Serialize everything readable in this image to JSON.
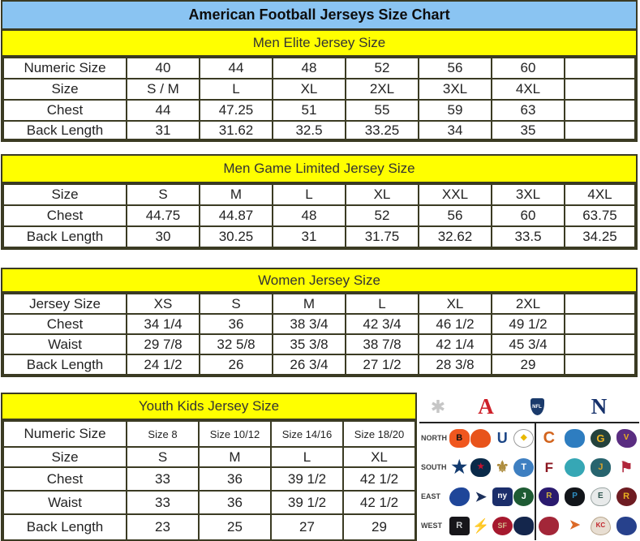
{
  "title": "American Football Jerseys Size Chart",
  "colors": {
    "title_bg": "#8AC4F2",
    "band_bg": "#FFFF00",
    "table_border": "#3B3B23",
    "text": "#232323"
  },
  "tables": [
    {
      "header": "Men Elite Jersey Size",
      "rows": [
        {
          "label": "Numeric Size",
          "values": [
            "40",
            "44",
            "48",
            "52",
            "56",
            "60",
            ""
          ]
        },
        {
          "label": "Size",
          "values": [
            "S / M",
            "L",
            "XL",
            "2XL",
            "3XL",
            "4XL",
            ""
          ]
        },
        {
          "label": "Chest",
          "values": [
            "44",
            "47.25",
            "51",
            "55",
            "59",
            "63",
            ""
          ]
        },
        {
          "label": "Back Length",
          "values": [
            "31",
            "31.62",
            "32.5",
            "33.25",
            "34",
            "35",
            ""
          ]
        }
      ]
    },
    {
      "header": "Men Game Limited Jersey Size",
      "rows": [
        {
          "label": "Size",
          "values": [
            "S",
            "M",
            "L",
            "XL",
            "XXL",
            "3XL",
            "4XL"
          ]
        },
        {
          "label": "Chest",
          "values": [
            "44.75",
            "44.87",
            "48",
            "52",
            "56",
            "60",
            "63.75"
          ]
        },
        {
          "label": "Back Length",
          "values": [
            "30",
            "30.25",
            "31",
            "31.75",
            "32.62",
            "33.5",
            "34.25"
          ]
        }
      ]
    },
    {
      "header": "Women Jersey Size",
      "rows": [
        {
          "label": "Jersey Size",
          "values": [
            "XS",
            "S",
            "M",
            "L",
            "XL",
            "2XL",
            ""
          ]
        },
        {
          "label": "Chest",
          "values": [
            "34 1/4",
            "36",
            "38 3/4",
            "42 3/4",
            "46 1/2",
            "49 1/2",
            ""
          ]
        },
        {
          "label": "Waist",
          "values": [
            "29 7/8",
            "32 5/8",
            "35 3/8",
            "38 7/8",
            "42 1/4",
            "45 3/4",
            ""
          ]
        },
        {
          "label": "Back Length",
          "values": [
            "24 1/2",
            "26",
            "26 3/4",
            "27 1/2",
            "28 3/8",
            "29",
            ""
          ]
        }
      ]
    },
    {
      "header": "Youth Kids Jersey Size",
      "rows": [
        {
          "label": "Numeric Size",
          "values": [
            "Size 8",
            "Size 10/12",
            "Size 14/16",
            "Size 18/20"
          ]
        },
        {
          "label": "Size",
          "values": [
            "S",
            "M",
            "L",
            "XL"
          ]
        },
        {
          "label": "Chest",
          "values": [
            "33",
            "36",
            "39 1/2",
            "42 1/2"
          ]
        },
        {
          "label": "Waist",
          "values": [
            "33",
            "36",
            "39 1/2",
            "42 1/2"
          ]
        },
        {
          "label": "Back Length",
          "values": [
            "23",
            "25",
            "27",
            "29"
          ]
        }
      ]
    }
  ],
  "logo_panel": {
    "header": {
      "starburst": {
        "glyph": "✱",
        "color": "#C6C6C6"
      },
      "afc": {
        "glyph": "A",
        "color": "#CE2029"
      },
      "nfl": {
        "glyph": "NFL",
        "color": "#FFFFFF",
        "bg": "#1A3A6B"
      },
      "nfc": {
        "glyph": "N",
        "color": "#16316B"
      }
    },
    "divisions": [
      {
        "label": "NORTH",
        "afc": [
          {
            "name": "cincinnati-bengals",
            "glyph": "B",
            "bg": "#F0571F",
            "fg": "#111111",
            "radius": "40%"
          },
          {
            "name": "cleveland-browns",
            "glyph": "",
            "bg": "#E8531B",
            "fg": "#ffffff",
            "radius": "50% 50% 42% 42%"
          },
          {
            "name": "indianapolis-colts",
            "glyph": "U",
            "bg": "",
            "fg": "#1B4586",
            "size": 18
          },
          {
            "name": "pittsburgh-steelers",
            "glyph": "◆",
            "bg": "#FFFFFF",
            "fg": "#E8B800",
            "radius": "50%",
            "size": 10,
            "border": "#9a9a9a"
          }
        ],
        "nfc": [
          {
            "name": "chicago-bears",
            "glyph": "C",
            "bg": "",
            "fg": "#D2631C",
            "size": 20
          },
          {
            "name": "detroit-lions",
            "glyph": "",
            "bg": "#2E7DC0",
            "fg": "#ffffff",
            "radius": "45%"
          },
          {
            "name": "green-bay-packers",
            "glyph": "G",
            "bg": "#24423C",
            "fg": "#EDB21F",
            "radius": "50%",
            "size": 13
          },
          {
            "name": "minnesota-vikings",
            "glyph": "V",
            "bg": "#5A2D81",
            "fg": "#E9B11F",
            "radius": "40% 60% 45% 55%",
            "size": 10
          }
        ]
      },
      {
        "label": "SOUTH",
        "afc": [
          {
            "name": "dallas-cowboys",
            "glyph": "★",
            "bg": "",
            "fg": "#123A6F",
            "size": 22
          },
          {
            "name": "houston-texans",
            "glyph": "★",
            "bg": "#0A2A49",
            "fg": "#C41230",
            "radius": "45%",
            "size": 10
          },
          {
            "name": "new-orleans-saints",
            "glyph": "⚜",
            "bg": "",
            "fg": "#AD8C3D",
            "size": 19
          },
          {
            "name": "tennessee-titans",
            "glyph": "T",
            "bg": "#3E7FC1",
            "fg": "#ffffff",
            "radius": "50%"
          }
        ],
        "nfc": [
          {
            "name": "atlanta-falcons",
            "glyph": "F",
            "bg": "",
            "fg": "#8B1620",
            "size": 17
          },
          {
            "name": "miami-dolphins",
            "glyph": "",
            "bg": "#36A7B5",
            "fg": "#F58220",
            "radius": "50%"
          },
          {
            "name": "jacksonville-jaguars",
            "glyph": "J",
            "bg": "#27646E",
            "fg": "#D7A22A",
            "radius": "45%"
          },
          {
            "name": "tampa-bay-buccaneers",
            "glyph": "⚑",
            "bg": "",
            "fg": "#B0253A",
            "size": 18
          }
        ]
      },
      {
        "label": "EAST",
        "afc": [
          {
            "name": "buffalo-bills",
            "glyph": "",
            "bg": "#1F4699",
            "fg": "#C60C30",
            "radius": "60% 40% 55% 45%"
          },
          {
            "name": "new-england-patriots",
            "glyph": "➤",
            "bg": "",
            "fg": "#1B2F5B",
            "size": 17
          },
          {
            "name": "new-york-giants",
            "glyph": "ny",
            "bg": "#1B2E6B",
            "fg": "#ffffff",
            "radius": "20%",
            "size": 10
          },
          {
            "name": "new-york-jets",
            "glyph": "J",
            "bg": "#1E5B33",
            "fg": "#ffffff",
            "radius": "50%"
          }
        ],
        "nfc": [
          {
            "name": "baltimore-ravens",
            "glyph": "R",
            "bg": "#2A1A6E",
            "fg": "#D0B240",
            "radius": "50% 50% 40% 60%",
            "size": 10
          },
          {
            "name": "carolina-panthers",
            "glyph": "P",
            "bg": "#12151A",
            "fg": "#2F8FC4",
            "radius": "45%",
            "size": 10
          },
          {
            "name": "philadelphia-eagles",
            "glyph": "E",
            "bg": "#E8EAEA",
            "fg": "#2C524C",
            "radius": "60% 40% 50% 50%",
            "size": 10,
            "border": "#9aa5a3"
          },
          {
            "name": "washington-redskins",
            "glyph": "R",
            "bg": "#6E1C22",
            "fg": "#E9B11F",
            "radius": "50%"
          }
        ]
      },
      {
        "label": "WEST",
        "afc": [
          {
            "name": "oakland-raiders",
            "glyph": "R",
            "bg": "#17161A",
            "fg": "#C8CACC",
            "radius": "15%"
          },
          {
            "name": "san-diego-chargers",
            "glyph": "⚡",
            "bg": "",
            "fg": "#4BA3D6",
            "size": 17
          },
          {
            "name": "san-francisco-49ers",
            "glyph": "SF",
            "bg": "#A6192E",
            "fg": "#D3BC8D",
            "radius": "50%",
            "size": 9
          },
          {
            "name": "seattle-seahawks",
            "glyph": "",
            "bg": "#14264C",
            "fg": "#69BE28",
            "radius": "55% 45% 45% 55%"
          }
        ],
        "nfc": [
          {
            "name": "arizona-cardinals",
            "glyph": "",
            "bg": "#A32638",
            "fg": "#ffffff",
            "radius": "55% 45% 50% 50%"
          },
          {
            "name": "denver-broncos",
            "glyph": "➤",
            "bg": "",
            "fg": "#DC6A27",
            "size": 16
          },
          {
            "name": "kansas-city-chiefs",
            "glyph": "KC",
            "bg": "#E8DED2",
            "fg": "#C1242B",
            "radius": "50% 50% 50% 50% / 60% 60% 40% 40%",
            "size": 8,
            "border": "#b9a88f"
          },
          {
            "name": "st-louis-rams",
            "glyph": "",
            "bg": "#27418C",
            "fg": "#E9B11F",
            "radius": "45% 55% 50% 50%"
          }
        ]
      }
    ]
  }
}
